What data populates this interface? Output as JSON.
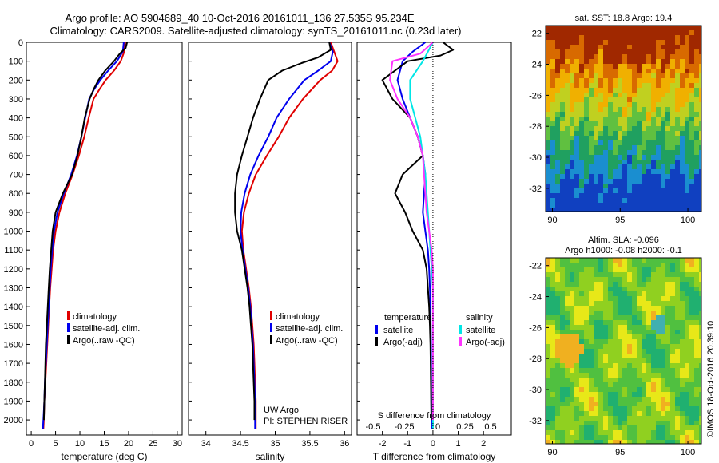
{
  "header": {
    "line1": "Argo profile: AO 5904689_40 10-Oct-2016 20161011_136 27.535S 95.234E",
    "line2": "Climatology: CARS2009. Satellite-adjusted climatology: synTS_20161011.nc (0.23d later)"
  },
  "colors": {
    "climatology": "#e00000",
    "satellite": "#0000ee",
    "argo": "#000000",
    "sat_salinity": "#00e6e6",
    "argo_salinity": "#ff33ff"
  },
  "chart_data": [
    {
      "type": "line",
      "xlabel": "temperature (deg C)",
      "xlim": [
        -1,
        31
      ],
      "x_ticks": [
        0,
        5,
        10,
        15,
        20,
        25,
        30
      ],
      "ylim": [
        2080,
        0
      ],
      "y_ticks": [
        0,
        100,
        200,
        300,
        400,
        500,
        600,
        700,
        800,
        900,
        1000,
        1100,
        1200,
        1300,
        1400,
        1500,
        1600,
        1700,
        1800,
        1900,
        2000
      ],
      "legend": [
        "climatology",
        "satellite-adj. clim.",
        "Argo(..raw -QC)"
      ],
      "series": [
        {
          "name": "climatology",
          "color": "#e00000",
          "points": [
            [
              19.3,
              0
            ],
            [
              19.1,
              50
            ],
            [
              18.4,
              100
            ],
            [
              17.0,
              150
            ],
            [
              15.3,
              200
            ],
            [
              14.0,
              250
            ],
            [
              12.8,
              300
            ],
            [
              11.8,
              400
            ],
            [
              10.9,
              500
            ],
            [
              9.8,
              600
            ],
            [
              8.5,
              700
            ],
            [
              7.0,
              800
            ],
            [
              5.8,
              900
            ],
            [
              5.0,
              1000
            ],
            [
              4.5,
              1100
            ],
            [
              4.2,
              1200
            ],
            [
              3.9,
              1300
            ],
            [
              3.7,
              1400
            ],
            [
              3.5,
              1500
            ],
            [
              3.3,
              1600
            ],
            [
              3.1,
              1700
            ],
            [
              2.9,
              1800
            ],
            [
              2.7,
              1900
            ],
            [
              2.6,
              2000
            ],
            [
              2.5,
              2050
            ]
          ]
        },
        {
          "name": "satellite-adj. clim.",
          "color": "#0000ee",
          "points": [
            [
              19.0,
              0
            ],
            [
              18.8,
              50
            ],
            [
              17.6,
              100
            ],
            [
              15.8,
              150
            ],
            [
              14.2,
              200
            ],
            [
              12.9,
              250
            ],
            [
              11.9,
              300
            ],
            [
              11.1,
              400
            ],
            [
              10.3,
              500
            ],
            [
              9.4,
              600
            ],
            [
              8.2,
              700
            ],
            [
              6.7,
              800
            ],
            [
              5.4,
              900
            ],
            [
              4.7,
              1000
            ],
            [
              4.3,
              1100
            ],
            [
              4.0,
              1200
            ],
            [
              3.8,
              1300
            ],
            [
              3.6,
              1400
            ],
            [
              3.4,
              1500
            ],
            [
              3.2,
              1600
            ],
            [
              3.0,
              1700
            ],
            [
              2.8,
              1800
            ],
            [
              2.7,
              1900
            ],
            [
              2.5,
              2000
            ],
            [
              2.4,
              2050
            ]
          ]
        },
        {
          "name": "Argo(..raw -QC)",
          "color": "#000000",
          "points": [
            [
              19.7,
              0
            ],
            [
              19.4,
              30
            ],
            [
              18.2,
              60
            ],
            [
              17.0,
              100
            ],
            [
              15.2,
              150
            ],
            [
              13.8,
              200
            ],
            [
              12.8,
              250
            ],
            [
              12.0,
              300
            ],
            [
              11.0,
              400
            ],
            [
              10.3,
              500
            ],
            [
              9.5,
              600
            ],
            [
              8.4,
              700
            ],
            [
              6.5,
              800
            ],
            [
              5.0,
              900
            ],
            [
              4.4,
              1000
            ],
            [
              4.1,
              1100
            ],
            [
              3.8,
              1200
            ],
            [
              3.6,
              1300
            ],
            [
              3.4,
              1400
            ],
            [
              3.2,
              1500
            ],
            [
              3.0,
              1600
            ],
            [
              2.9,
              1700
            ],
            [
              2.8,
              1800
            ],
            [
              2.7,
              1900
            ],
            [
              2.6,
              2000
            ]
          ]
        }
      ]
    },
    {
      "type": "line",
      "xlabel": "salinity",
      "xlim": [
        33.75,
        36.1
      ],
      "x_ticks": [
        34,
        34.5,
        35,
        35.5,
        36
      ],
      "x_tick_labels": [
        "34",
        "34.5",
        "35",
        "35.5",
        "36"
      ],
      "ylim": [
        2080,
        0
      ],
      "legend": [
        "climatology",
        "satellite-adj. clim.",
        "Argo(..raw -QC)"
      ],
      "annotation": [
        "UW Argo",
        "PI: STEPHEN RISER"
      ],
      "series": [
        {
          "name": "climatology",
          "color": "#e00000",
          "points": [
            [
              35.8,
              0
            ],
            [
              35.85,
              50
            ],
            [
              35.9,
              100
            ],
            [
              35.82,
              150
            ],
            [
              35.65,
              200
            ],
            [
              35.4,
              300
            ],
            [
              35.2,
              400
            ],
            [
              35.05,
              500
            ],
            [
              34.88,
              600
            ],
            [
              34.72,
              700
            ],
            [
              34.62,
              800
            ],
            [
              34.55,
              900
            ],
            [
              34.52,
              1000
            ],
            [
              34.54,
              1100
            ],
            [
              34.58,
              1200
            ],
            [
              34.62,
              1300
            ],
            [
              34.65,
              1400
            ],
            [
              34.67,
              1500
            ],
            [
              34.69,
              1600
            ],
            [
              34.7,
              1700
            ],
            [
              34.71,
              1800
            ],
            [
              34.72,
              1900
            ],
            [
              34.72,
              2000
            ],
            [
              34.72,
              2050
            ]
          ]
        },
        {
          "name": "satellite-adj. clim.",
          "color": "#0000ee",
          "points": [
            [
              35.78,
              0
            ],
            [
              35.83,
              50
            ],
            [
              35.8,
              100
            ],
            [
              35.62,
              150
            ],
            [
              35.42,
              200
            ],
            [
              35.2,
              300
            ],
            [
              35.02,
              400
            ],
            [
              34.9,
              500
            ],
            [
              34.76,
              600
            ],
            [
              34.64,
              700
            ],
            [
              34.56,
              800
            ],
            [
              34.51,
              900
            ],
            [
              34.5,
              1000
            ],
            [
              34.53,
              1100
            ],
            [
              34.57,
              1200
            ],
            [
              34.61,
              1300
            ],
            [
              34.64,
              1400
            ],
            [
              34.66,
              1500
            ],
            [
              34.68,
              1600
            ],
            [
              34.69,
              1700
            ],
            [
              34.7,
              1800
            ],
            [
              34.71,
              1900
            ],
            [
              34.71,
              2000
            ],
            [
              34.71,
              2050
            ]
          ]
        },
        {
          "name": "Argo(..raw -QC)",
          "color": "#000000",
          "points": [
            [
              35.78,
              0
            ],
            [
              35.8,
              40
            ],
            [
              35.62,
              80
            ],
            [
              35.38,
              110
            ],
            [
              35.1,
              150
            ],
            [
              34.9,
              200
            ],
            [
              34.78,
              300
            ],
            [
              34.68,
              400
            ],
            [
              34.6,
              500
            ],
            [
              34.52,
              600
            ],
            [
              34.45,
              700
            ],
            [
              34.42,
              800
            ],
            [
              34.42,
              900
            ],
            [
              34.45,
              1000
            ],
            [
              34.52,
              1100
            ],
            [
              34.56,
              1200
            ],
            [
              34.6,
              1300
            ],
            [
              34.63,
              1400
            ],
            [
              34.65,
              1500
            ],
            [
              34.67,
              1600
            ],
            [
              34.68,
              1700
            ],
            [
              34.69,
              1800
            ],
            [
              34.7,
              1900
            ],
            [
              34.7,
              2000
            ]
          ]
        }
      ]
    },
    {
      "type": "line",
      "xlabel": "T difference from climatology",
      "top_xlabel": "S difference from climatology",
      "xlim": [
        -3,
        3.1
      ],
      "x_ticks": [
        -2,
        -1,
        0,
        1,
        2
      ],
      "top_x_ticks": [
        -0.5,
        -0.25,
        0,
        0.25,
        0.5
      ],
      "top_x_tick_labels": [
        "-0.5",
        "-0.25",
        "0",
        "0.25",
        "0.5"
      ],
      "ylim": [
        2080,
        0
      ],
      "legend": {
        "temperature": [
          "satellite",
          "Argo(-adj)"
        ],
        "salinity": [
          "satellite",
          "Argo(-adj)"
        ]
      },
      "series": [
        {
          "name": "temperature satellite",
          "color": "#0000ee",
          "points": [
            [
              -0.3,
              0
            ],
            [
              -0.8,
              50
            ],
            [
              -1.2,
              100
            ],
            [
              -1.4,
              200
            ],
            [
              -1.2,
              300
            ],
            [
              -0.9,
              400
            ],
            [
              -0.6,
              500
            ],
            [
              -0.4,
              600
            ],
            [
              -0.3,
              700
            ],
            [
              -0.35,
              800
            ],
            [
              -0.4,
              900
            ],
            [
              -0.3,
              1000
            ],
            [
              -0.2,
              1100
            ],
            [
              -0.15,
              1200
            ],
            [
              -0.12,
              1300
            ],
            [
              -0.1,
              1400
            ],
            [
              -0.09,
              1500
            ],
            [
              -0.08,
              1600
            ],
            [
              -0.07,
              1800
            ],
            [
              -0.06,
              2000
            ],
            [
              -0.05,
              2050
            ]
          ]
        },
        {
          "name": "temperature Argo(-adj)",
          "color": "#000000",
          "points": [
            [
              0.4,
              0
            ],
            [
              0.8,
              40
            ],
            [
              0.3,
              70
            ],
            [
              -1.0,
              100
            ],
            [
              -2.0,
              200
            ],
            [
              -1.6,
              300
            ],
            [
              -0.9,
              400
            ],
            [
              -0.6,
              500
            ],
            [
              -0.4,
              600
            ],
            [
              -1.2,
              700
            ],
            [
              -1.5,
              800
            ],
            [
              -1.1,
              900
            ],
            [
              -0.8,
              1000
            ],
            [
              -0.4,
              1100
            ],
            [
              -0.25,
              1200
            ],
            [
              -0.2,
              1300
            ],
            [
              -0.15,
              1400
            ],
            [
              -0.12,
              1500
            ],
            [
              -0.1,
              1600
            ],
            [
              -0.08,
              1800
            ],
            [
              -0.06,
              2000
            ]
          ]
        },
        {
          "name": "salinity satellite",
          "color": "#00e6e6",
          "points": [
            [
              0.0,
              0
            ],
            [
              -0.4,
              100
            ],
            [
              -0.9,
              200
            ],
            [
              -0.9,
              300
            ],
            [
              -0.7,
              400
            ],
            [
              -0.5,
              500
            ],
            [
              -0.3,
              700
            ],
            [
              -0.2,
              900
            ],
            [
              -0.1,
              1100
            ],
            [
              0.0,
              1300
            ],
            [
              0.0,
              2050
            ]
          ]
        },
        {
          "name": "salinity Argo(-adj)",
          "color": "#ff33ff",
          "points": [
            [
              0.0,
              0
            ],
            [
              -0.5,
              60
            ],
            [
              -1.6,
              100
            ],
            [
              -1.7,
              200
            ],
            [
              -1.4,
              300
            ],
            [
              -0.9,
              400
            ],
            [
              -0.6,
              500
            ],
            [
              -0.4,
              600
            ],
            [
              -0.35,
              700
            ],
            [
              -0.3,
              800
            ],
            [
              -0.25,
              900
            ],
            [
              -0.15,
              1000
            ],
            [
              -0.05,
              1100
            ],
            [
              0.0,
              1200
            ],
            [
              0.0,
              2000
            ]
          ]
        }
      ]
    },
    {
      "type": "heatmap",
      "title": "sat. SST: 18.8 Argo: 19.4",
      "xlim": [
        89.5,
        101
      ],
      "ylim": [
        -33.5,
        -21.5
      ],
      "x_ticks": [
        90,
        95,
        100
      ],
      "y_ticks": [
        -22,
        -24,
        -26,
        -28,
        -30,
        -32
      ],
      "palette": "jet",
      "colors": [
        "#a02800",
        "#d86a00",
        "#f0b000",
        "#c0d020",
        "#60c040",
        "#20a060",
        "#1a8ed0",
        "#1040c0"
      ]
    },
    {
      "type": "heatmap",
      "title_line1": "Altim. SLA: -0.096",
      "title_line2": "Argo h1000: -0.08 h2000: -0.1",
      "xlim": [
        89.5,
        101
      ],
      "ylim": [
        -33.5,
        -21.5
      ],
      "x_ticks": [
        90,
        95,
        100
      ],
      "y_ticks": [
        -22,
        -24,
        -26,
        -28,
        -30,
        -32
      ],
      "palette": "jet",
      "colors": [
        "#20b070",
        "#50c040",
        "#90d020",
        "#e8e818",
        "#f0b020",
        "#40b0b0"
      ]
    }
  ],
  "footer": {
    "stamp": "©IMOS 18-Oct-2016 20:39:10"
  }
}
